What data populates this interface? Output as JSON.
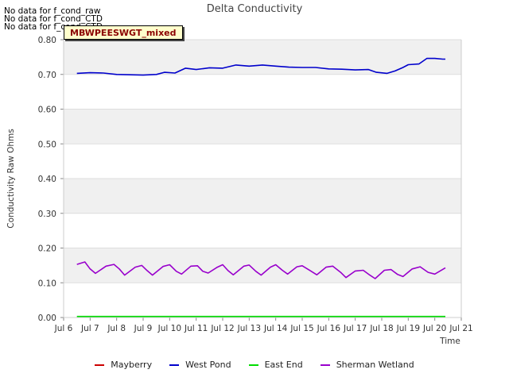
{
  "no_data_messages": [
    "No data for f_cond_raw",
    "No data for f_cond_CTD",
    "No data for f_cond_CTD"
  ],
  "site_label": "MBWPEESWGT_mixed",
  "colors": {
    "mayberry": "#cc0000",
    "west_pond": "#0000cc",
    "east_end": "#00dd00",
    "sherman_wetland": "#9900cc",
    "band": "#f0f0f0",
    "grid": "#dddddd"
  },
  "chart_data": {
    "type": "line",
    "title": "Delta Conductivity",
    "xlabel": "Time",
    "ylabel": "Conductivity Raw Ohms",
    "x_ticks": [
      "Jul 6",
      "Jul 7",
      "Jul 8",
      "Jul 9",
      "Jul 10",
      "Jul 11",
      "Jul 12",
      "Jul 13",
      "Jul 14",
      "Jul 15",
      "Jul 16",
      "Jul 17",
      "Jul 18",
      "Jul 19",
      "Jul 20",
      "Jul 21"
    ],
    "y_ticks": [
      "0.00",
      "0.10",
      "0.20",
      "0.30",
      "0.40",
      "0.50",
      "0.60",
      "0.70",
      "0.80"
    ],
    "xlim": [
      6,
      21
    ],
    "ylim": [
      0,
      0.8
    ],
    "grid": true,
    "legend_position": "bottom",
    "series": [
      {
        "name": "Mayberry",
        "points": []
      },
      {
        "name": "West Pond",
        "points": [
          [
            6.5,
            0.703
          ],
          [
            7.0,
            0.705
          ],
          [
            7.5,
            0.704
          ],
          [
            8.0,
            0.7
          ],
          [
            8.5,
            0.699
          ],
          [
            9.0,
            0.698
          ],
          [
            9.5,
            0.7
          ],
          [
            9.8,
            0.706
          ],
          [
            10.2,
            0.704
          ],
          [
            10.6,
            0.718
          ],
          [
            11.0,
            0.714
          ],
          [
            11.5,
            0.719
          ],
          [
            12.0,
            0.718
          ],
          [
            12.5,
            0.727
          ],
          [
            13.0,
            0.724
          ],
          [
            13.5,
            0.727
          ],
          [
            14.0,
            0.724
          ],
          [
            14.5,
            0.721
          ],
          [
            15.0,
            0.72
          ],
          [
            15.5,
            0.72
          ],
          [
            16.0,
            0.716
          ],
          [
            16.5,
            0.715
          ],
          [
            17.0,
            0.713
          ],
          [
            17.5,
            0.714
          ],
          [
            17.8,
            0.706
          ],
          [
            18.2,
            0.703
          ],
          [
            18.5,
            0.71
          ],
          [
            18.8,
            0.72
          ],
          [
            19.0,
            0.728
          ],
          [
            19.4,
            0.73
          ],
          [
            19.7,
            0.746
          ],
          [
            20.0,
            0.746
          ],
          [
            20.3,
            0.744
          ],
          [
            20.4,
            0.744
          ]
        ]
      },
      {
        "name": "East End",
        "points": [
          [
            6.5,
            0.003
          ],
          [
            20.4,
            0.003
          ]
        ]
      },
      {
        "name": "Sherman Wetland",
        "points": [
          [
            6.5,
            0.153
          ],
          [
            6.8,
            0.16
          ],
          [
            7.0,
            0.14
          ],
          [
            7.2,
            0.127
          ],
          [
            7.6,
            0.148
          ],
          [
            7.9,
            0.153
          ],
          [
            8.1,
            0.14
          ],
          [
            8.3,
            0.122
          ],
          [
            8.7,
            0.145
          ],
          [
            8.95,
            0.15
          ],
          [
            9.15,
            0.135
          ],
          [
            9.35,
            0.122
          ],
          [
            9.75,
            0.147
          ],
          [
            10.0,
            0.152
          ],
          [
            10.25,
            0.133
          ],
          [
            10.45,
            0.125
          ],
          [
            10.8,
            0.148
          ],
          [
            11.05,
            0.149
          ],
          [
            11.25,
            0.133
          ],
          [
            11.45,
            0.128
          ],
          [
            11.8,
            0.145
          ],
          [
            12.0,
            0.152
          ],
          [
            12.2,
            0.135
          ],
          [
            12.4,
            0.123
          ],
          [
            12.8,
            0.148
          ],
          [
            13.0,
            0.151
          ],
          [
            13.25,
            0.133
          ],
          [
            13.45,
            0.122
          ],
          [
            13.8,
            0.145
          ],
          [
            14.0,
            0.152
          ],
          [
            14.25,
            0.136
          ],
          [
            14.45,
            0.125
          ],
          [
            14.8,
            0.146
          ],
          [
            15.0,
            0.149
          ],
          [
            15.3,
            0.135
          ],
          [
            15.55,
            0.123
          ],
          [
            15.9,
            0.145
          ],
          [
            16.15,
            0.148
          ],
          [
            16.45,
            0.13
          ],
          [
            16.65,
            0.115
          ],
          [
            17.0,
            0.134
          ],
          [
            17.3,
            0.136
          ],
          [
            17.55,
            0.122
          ],
          [
            17.75,
            0.112
          ],
          [
            18.1,
            0.136
          ],
          [
            18.35,
            0.138
          ],
          [
            18.6,
            0.124
          ],
          [
            18.8,
            0.118
          ],
          [
            19.15,
            0.14
          ],
          [
            19.45,
            0.146
          ],
          [
            19.75,
            0.13
          ],
          [
            20.0,
            0.125
          ],
          [
            20.4,
            0.143
          ]
        ]
      }
    ]
  }
}
